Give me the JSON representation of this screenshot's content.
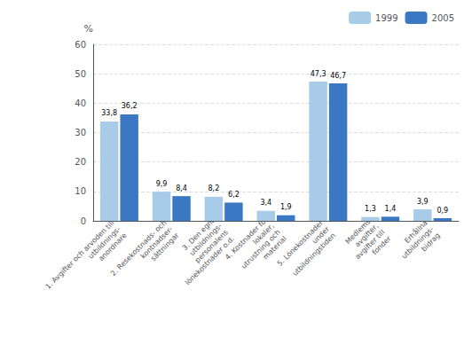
{
  "chart_data": {
    "type": "bar",
    "ylabel": "%",
    "categories": [
      "1. Avgifter och arvoden till\nutbildnings-\nanordnare",
      "2. Resekostnads- och\nkontnadser-\nsättningar",
      "3. Den egna\nutbildnings-\npersonalens\nlönekostnader o.d.",
      "4. Kostnader för\nlokaler,\nutrustning och\nmaterial",
      "5. Lönekostnader\nunder\nutbildningstiden",
      "Medlems-\navgifter,\navgifter till\nfonder",
      "Erhållna\nutbildnings-\nbidrag"
    ],
    "series": [
      {
        "name": "1999",
        "color": "#a8cce8",
        "values": [
          33.8,
          9.9,
          8.2,
          3.4,
          47.3,
          1.3,
          3.9
        ],
        "value_labels": [
          "33,8",
          "9,9",
          "8,2",
          "3,4",
          "47,3",
          "1,3",
          "3,9"
        ]
      },
      {
        "name": "2005",
        "color": "#3b78c3",
        "values": [
          36.2,
          8.4,
          6.2,
          1.9,
          46.7,
          1.4,
          0.9
        ],
        "value_labels": [
          "36,2",
          "8,4",
          "6,2",
          "1,9",
          "46,7",
          "1,4",
          "0,9"
        ]
      }
    ],
    "ylim": [
      0,
      60
    ],
    "yticks": [
      0,
      10,
      20,
      30,
      40,
      50,
      60
    ],
    "grid": true,
    "legend": "upper right",
    "data_labels": true
  }
}
